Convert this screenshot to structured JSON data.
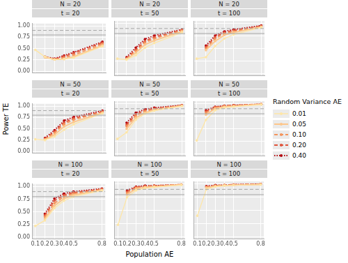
{
  "chart_data": {
    "type": "line",
    "x_label": "Population AE",
    "y_label": "Power TE",
    "legend_title": "Random Variance AE",
    "legend": "right",
    "grid": true,
    "x": [
      0.1,
      0.2,
      0.3,
      0.4,
      0.5,
      0.8
    ],
    "xlim": [
      0.065,
      0.835
    ],
    "xticks": [
      0.1,
      0.2,
      0.3,
      0.4,
      0.5,
      0.8
    ],
    "ylim": [
      -0.03,
      1.05
    ],
    "yticks": [
      {
        "value": 0,
        "label": "0.00"
      },
      {
        "value": 0.25,
        "label": "0.25"
      },
      {
        "value": 0.5,
        "label": "0.50"
      },
      {
        "value": 0.75,
        "label": "0.75"
      },
      {
        "value": 1,
        "label": "1.00"
      }
    ],
    "hlines": [
      {
        "value": 0.8,
        "line_style": "solid",
        "color": "#a6a6a6"
      },
      {
        "value": 0.9,
        "line_style": "dashed",
        "color": "#a6a6a6"
      }
    ],
    "series": [
      {
        "name": "0.01",
        "color": "#fee6a6",
        "line_style": "solid",
        "marker": "circle"
      },
      {
        "name": "0.05",
        "color": "#fdc68a",
        "line_style": "solid",
        "marker": "circle"
      },
      {
        "name": "0.10",
        "color": "#f4945c",
        "line_style": "dashed",
        "marker": "circle"
      },
      {
        "name": "0.20",
        "color": "#df533a",
        "line_style": "dashed",
        "marker": "circle"
      },
      {
        "name": "0.40",
        "color": "#b3000b",
        "line_style": "dotted",
        "marker": "circle"
      }
    ],
    "panels": [
      {
        "title": "N = 20",
        "subtitle": "t = 20",
        "values": [
          [
            0.47,
            0.32,
            0.26,
            0.27,
            0.3,
            0.55
          ],
          [
            null,
            0.31,
            0.26,
            0.27,
            0.32,
            0.57
          ],
          [
            null,
            0.31,
            0.26,
            0.3,
            0.36,
            0.6
          ],
          [
            null,
            0.32,
            0.27,
            0.33,
            0.4,
            0.63
          ],
          [
            null,
            0.32,
            0.28,
            0.35,
            0.42,
            0.65
          ]
        ]
      },
      {
        "title": "N = 20",
        "subtitle": "t = 50",
        "values": [
          [
            0.3,
            0.28,
            0.37,
            0.52,
            0.61,
            0.82
          ],
          [
            null,
            0.29,
            0.42,
            0.58,
            0.66,
            0.84
          ],
          [
            null,
            0.3,
            0.45,
            0.62,
            0.7,
            0.86
          ],
          [
            null,
            0.31,
            0.48,
            0.65,
            0.73,
            0.87
          ],
          [
            null,
            0.33,
            0.52,
            0.69,
            0.76,
            0.88
          ]
        ]
      },
      {
        "title": "N = 20",
        "subtitle": "t = 100",
        "values": [
          [
            0.3,
            0.33,
            0.55,
            0.7,
            0.78,
            0.92
          ],
          [
            null,
            0.47,
            0.65,
            0.77,
            0.82,
            0.93
          ],
          [
            null,
            0.5,
            0.7,
            0.8,
            0.84,
            0.94
          ],
          [
            null,
            0.53,
            0.73,
            0.82,
            0.86,
            0.95
          ],
          [
            null,
            0.56,
            0.76,
            0.84,
            0.88,
            0.96
          ]
        ]
      },
      {
        "title": "N = 50",
        "subtitle": "t = 20",
        "values": [
          [
            0.27,
            0.25,
            0.33,
            0.48,
            0.6,
            0.84
          ],
          [
            null,
            0.26,
            0.37,
            0.55,
            0.65,
            0.85
          ],
          [
            null,
            0.27,
            0.41,
            0.6,
            0.7,
            0.87
          ],
          [
            null,
            0.28,
            0.44,
            0.64,
            0.73,
            0.88
          ],
          [
            null,
            0.3,
            0.47,
            0.68,
            0.76,
            0.9
          ]
        ]
      },
      {
        "title": "N = 50",
        "subtitle": "t = 50",
        "values": [
          [
            0.3,
            0.43,
            0.68,
            0.8,
            0.86,
            0.95
          ],
          [
            null,
            0.5,
            0.72,
            0.82,
            0.87,
            0.96
          ],
          [
            null,
            0.55,
            0.76,
            0.85,
            0.89,
            0.96
          ],
          [
            null,
            0.58,
            0.79,
            0.87,
            0.9,
            0.97
          ],
          [
            null,
            0.62,
            0.82,
            0.89,
            0.92,
            0.97
          ]
        ]
      },
      {
        "title": "N = 50",
        "subtitle": "t = 100",
        "values": [
          [
            0.27,
            0.68,
            0.87,
            0.92,
            0.94,
            0.98
          ],
          [
            null,
            0.78,
            0.9,
            0.94,
            0.95,
            0.99
          ],
          [
            null,
            0.82,
            0.92,
            0.95,
            0.96,
            0.99
          ],
          [
            null,
            0.85,
            0.93,
            0.96,
            0.97,
            0.99
          ],
          [
            null,
            0.87,
            0.94,
            0.96,
            0.97,
            0.99
          ]
        ]
      },
      {
        "title": "N = 100",
        "subtitle": "t = 20",
        "values": [
          [
            0.22,
            0.33,
            0.57,
            0.72,
            0.8,
            0.92
          ],
          [
            null,
            0.36,
            0.62,
            0.76,
            0.83,
            0.93
          ],
          [
            null,
            0.4,
            0.67,
            0.8,
            0.86,
            0.94
          ],
          [
            null,
            0.43,
            0.72,
            0.83,
            0.88,
            0.95
          ],
          [
            null,
            0.46,
            0.76,
            0.86,
            0.9,
            0.96
          ]
        ]
      },
      {
        "title": "N = 100",
        "subtitle": "t = 50",
        "values": [
          [
            0.23,
            0.75,
            0.88,
            0.92,
            0.94,
            0.98
          ],
          [
            null,
            0.8,
            0.91,
            0.94,
            0.95,
            0.99
          ],
          [
            null,
            0.83,
            0.93,
            0.95,
            0.96,
            0.99
          ],
          [
            null,
            0.86,
            0.94,
            0.96,
            0.97,
            0.99
          ],
          [
            null,
            0.88,
            0.95,
            0.97,
            0.97,
            0.99
          ]
        ]
      },
      {
        "title": "N = 100",
        "subtitle": "t = 100",
        "values": [
          [
            0.4,
            0.9,
            0.95,
            0.97,
            0.98,
            0.99
          ],
          [
            null,
            0.93,
            0.96,
            0.97,
            0.98,
            0.99
          ],
          [
            null,
            0.94,
            0.97,
            0.98,
            0.98,
            1.0
          ],
          [
            null,
            0.95,
            0.97,
            0.98,
            0.99,
            1.0
          ],
          [
            null,
            0.96,
            0.98,
            0.98,
            0.99,
            1.0
          ]
        ]
      }
    ]
  }
}
